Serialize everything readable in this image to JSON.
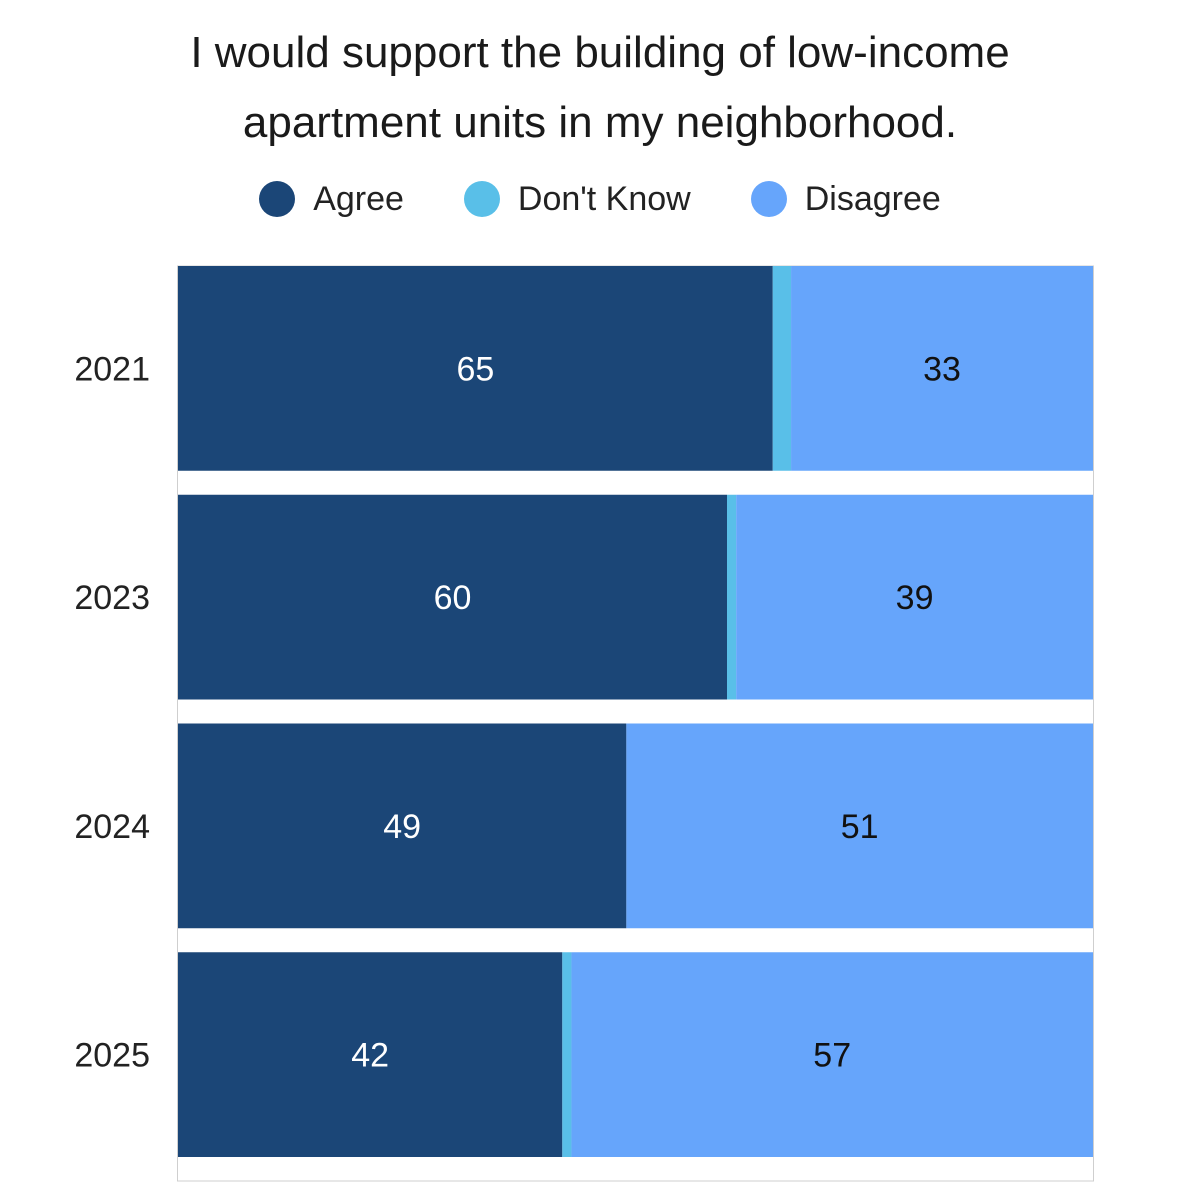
{
  "chart_data": {
    "type": "bar",
    "orientation": "horizontal-stacked",
    "title_lines": [
      "I would support the building of low-income",
      "apartment units in my neighborhood."
    ],
    "categories": [
      "2021",
      "2023",
      "2024",
      "2025"
    ],
    "series": [
      {
        "name": "Agree",
        "color": "#1b4677",
        "values": [
          65,
          60,
          49,
          42
        ],
        "label_color": "#ffffff"
      },
      {
        "name": "Don't Know",
        "color": "#59bfe8",
        "values": [
          2,
          1,
          0,
          1
        ],
        "label_color": "#ffffff"
      },
      {
        "name": "Disagree",
        "color": "#66a5fb",
        "values": [
          33,
          39,
          51,
          57
        ],
        "label_color": "#111111"
      }
    ],
    "data_labels": {
      "Agree": [
        "65",
        "60",
        "49",
        "42"
      ],
      "Disagree": [
        "33",
        "39",
        "51",
        "57"
      ]
    },
    "xlim": [
      0,
      100
    ],
    "legend_position": "top-center",
    "grid": false
  }
}
